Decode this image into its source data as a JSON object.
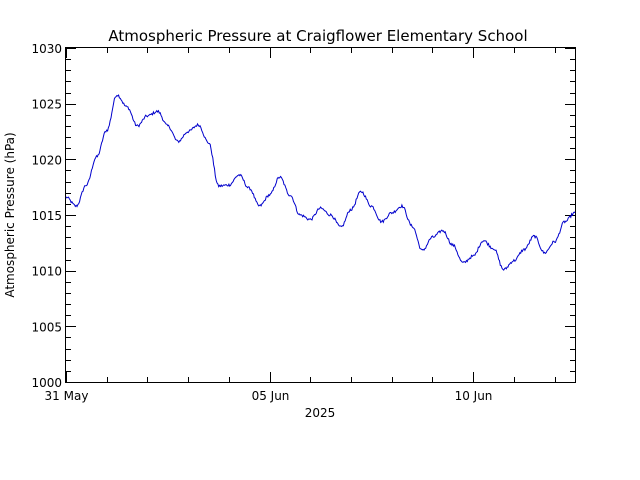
{
  "chart_data": {
    "type": "line",
    "title": "Atmospheric Pressure at Craigflower Elementary School",
    "ylabel": "Atmospheric Pressure (hPa)",
    "xlabel": "2025",
    "xlim": [
      "2025-05-31",
      "2025-06-12T12:00"
    ],
    "ylim": [
      1000,
      1030
    ],
    "grid": false,
    "legend": "none",
    "yticks": [
      1000,
      1005,
      1010,
      1015,
      1020,
      1025,
      1030
    ],
    "xticks": [
      {
        "x": "2025-05-31",
        "label": "31 May"
      },
      {
        "x": "2025-06-05",
        "label": "05 Jun"
      },
      {
        "x": "2025-06-10",
        "label": "10 Jun"
      }
    ],
    "series": [
      {
        "color": "#0000cc",
        "x": [
          "2025-05-31T00:00",
          "2025-05-31T06:00",
          "2025-05-31T12:00",
          "2025-05-31T18:00",
          "2025-06-01T00:00",
          "2025-06-01T06:00",
          "2025-06-01T12:00",
          "2025-06-01T18:00",
          "2025-06-02T00:00",
          "2025-06-02T06:00",
          "2025-06-02T12:00",
          "2025-06-02T18:00",
          "2025-06-03T00:00",
          "2025-06-03T06:00",
          "2025-06-03T12:00",
          "2025-06-03T18:00",
          "2025-06-04T00:00",
          "2025-06-04T06:00",
          "2025-06-04T12:00",
          "2025-06-04T18:00",
          "2025-06-05T00:00",
          "2025-06-05T06:00",
          "2025-06-05T12:00",
          "2025-06-05T18:00",
          "2025-06-06T00:00",
          "2025-06-06T06:00",
          "2025-06-06T12:00",
          "2025-06-06T18:00",
          "2025-06-07T00:00",
          "2025-06-07T06:00",
          "2025-06-07T12:00",
          "2025-06-07T18:00",
          "2025-06-08T00:00",
          "2025-06-08T06:00",
          "2025-06-08T12:00",
          "2025-06-08T18:00",
          "2025-06-09T00:00",
          "2025-06-09T06:00",
          "2025-06-09T12:00",
          "2025-06-09T18:00",
          "2025-06-10T00:00",
          "2025-06-10T06:00",
          "2025-06-10T12:00",
          "2025-06-10T18:00",
          "2025-06-11T00:00",
          "2025-06-11T06:00",
          "2025-06-11T12:00",
          "2025-06-11T18:00",
          "2025-06-12T00:00",
          "2025-06-12T06:00",
          "2025-06-12T12:00"
        ],
        "values": [
          1016.6,
          1015.8,
          1017.7,
          1020.2,
          1022.6,
          1025.8,
          1024.7,
          1023.0,
          1023.9,
          1024.3,
          1023.0,
          1021.6,
          1022.5,
          1023.1,
          1021.5,
          1017.6,
          1017.7,
          1018.6,
          1017.4,
          1015.8,
          1016.8,
          1018.4,
          1016.8,
          1015.0,
          1014.6,
          1015.6,
          1015.0,
          1013.9,
          1015.5,
          1017.1,
          1015.8,
          1014.4,
          1015.2,
          1015.8,
          1014.0,
          1011.8,
          1013.0,
          1013.6,
          1012.3,
          1010.7,
          1011.3,
          1012.7,
          1012.0,
          1010.1,
          1010.9,
          1011.9,
          1013.1,
          1011.6,
          1012.6,
          1014.4,
          1015.2
        ]
      }
    ]
  }
}
